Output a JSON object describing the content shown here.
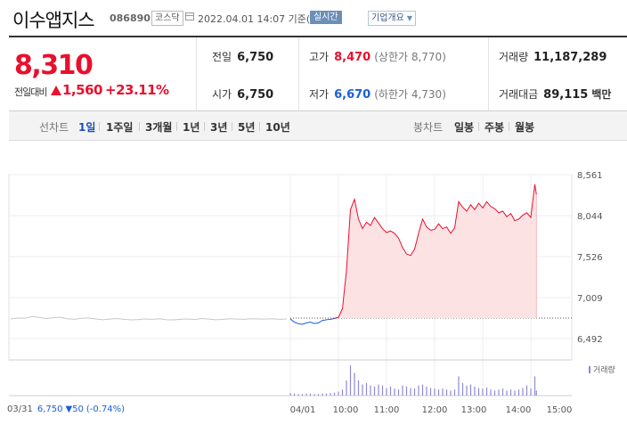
{
  "header": {
    "name": "이수앱지스",
    "code": "086890",
    "market": "코스닥",
    "datetime": "2022.04.01 14:07 기준(장중)",
    "realtime_badge": "실시간",
    "company_button": "기업개요"
  },
  "price": {
    "current": "8,310",
    "vs_label": "전일대비",
    "change": "1,560",
    "change_rate": "+23.11%"
  },
  "stats": {
    "prev_label": "전일",
    "prev": "6,750",
    "open_label": "시가",
    "open": "6,750",
    "high_label": "고가",
    "high": "8,470",
    "upper_limit": "(상한가 8,770)",
    "low_label": "저가",
    "low": "6,670",
    "lower_limit": "(하한가 4,730)",
    "volume_label": "거래량",
    "volume": "11,187,289",
    "amount_label": "거래대금",
    "amount": "89,115",
    "amount_unit": "백만"
  },
  "periods": {
    "line_label": "선차트",
    "items": [
      "1일",
      "1주일",
      "3개월",
      "1년",
      "3년",
      "5년",
      "10년"
    ],
    "active": "1일",
    "candle_label": "봉차트",
    "candle_items": [
      "일봉",
      "주봉",
      "월봉"
    ]
  },
  "colors": {
    "up": "#e8102e",
    "down": "#1b5fd8",
    "prev_day_line": "#c8c8c8",
    "area_fill": "#fde2e4",
    "volume": "#8e8ad0"
  },
  "chart_data": {
    "type": "line",
    "y_ticks": [
      "8,561",
      "8,044",
      "7,526",
      "7,009",
      "6,492"
    ],
    "ylim": [
      6492,
      8561
    ],
    "baseline": 6750,
    "x_ticks": [
      "03/31",
      "04/01",
      "10:00",
      "11:00",
      "12:00",
      "13:00",
      "14:00",
      "15:00"
    ],
    "prev_day_prices": [
      6740,
      6752,
      6748,
      6770,
      6760,
      6745,
      6755,
      6760,
      6742,
      6735,
      6748,
      6752,
      6740,
      6730,
      6738,
      6745,
      6735,
      6728,
      6732,
      6740,
      6735,
      6742,
      6730,
      6728,
      6735,
      6740,
      6732,
      6745,
      6738,
      6730,
      6735,
      6742,
      6738,
      6735,
      6742,
      6740,
      6738,
      6742,
      6735,
      6740
    ],
    "today_times": [
      "09:00",
      "09:05",
      "09:10",
      "09:15",
      "09:20",
      "09:25",
      "09:30",
      "09:35",
      "09:40",
      "09:45",
      "09:50",
      "09:55",
      "10:00",
      "10:05",
      "10:10",
      "10:15",
      "10:20",
      "10:25",
      "10:30",
      "10:35",
      "10:40",
      "10:45",
      "10:50",
      "10:55",
      "11:00",
      "11:05",
      "11:10",
      "11:15",
      "11:20",
      "11:25",
      "11:30",
      "11:35",
      "11:40",
      "11:45",
      "11:50",
      "11:55",
      "12:00",
      "12:05",
      "12:10",
      "12:15",
      "12:20",
      "12:25",
      "12:30",
      "12:35",
      "12:40",
      "12:45",
      "12:50",
      "12:55",
      "13:00",
      "13:05",
      "13:10",
      "13:15",
      "13:20",
      "13:25",
      "13:30",
      "13:35",
      "13:40",
      "13:45",
      "13:50",
      "13:55",
      "14:00",
      "14:05",
      "14:07"
    ],
    "today_prices": [
      6740,
      6700,
      6680,
      6672,
      6690,
      6700,
      6682,
      6690,
      6720,
      6730,
      6735,
      6745,
      6760,
      6870,
      7350,
      8120,
      8250,
      8000,
      7880,
      7960,
      7920,
      8020,
      7950,
      7880,
      7830,
      7850,
      7820,
      7760,
      7640,
      7560,
      7540,
      7620,
      7820,
      8000,
      7900,
      7860,
      7870,
      7940,
      7880,
      7900,
      7820,
      7890,
      8220,
      8150,
      8100,
      8180,
      8120,
      8200,
      8140,
      8220,
      8160,
      8130,
      8080,
      8100,
      8030,
      8070,
      7980,
      8000,
      8050,
      8080,
      8020,
      8440,
      8310
    ],
    "series": [
      {
        "name": "거래량",
        "values": [
          5,
          4,
          3,
          3,
          4,
          4,
          3,
          3,
          4,
          4,
          5,
          6,
          8,
          12,
          30,
          60,
          45,
          30,
          22,
          25,
          20,
          18,
          22,
          20,
          15,
          18,
          14,
          12,
          20,
          18,
          15,
          14,
          20,
          22,
          18,
          15,
          14,
          12,
          14,
          12,
          10,
          12,
          38,
          25,
          20,
          22,
          18,
          15,
          14,
          16,
          12,
          10,
          12,
          14,
          10,
          12,
          10,
          12,
          15,
          20,
          14,
          38,
          10
        ]
      }
    ]
  },
  "legend": {
    "volume": "거래량"
  },
  "prevday": {
    "date": "03/31",
    "price": "6,750",
    "change": "▼50",
    "rate": "(-0.74%)"
  }
}
